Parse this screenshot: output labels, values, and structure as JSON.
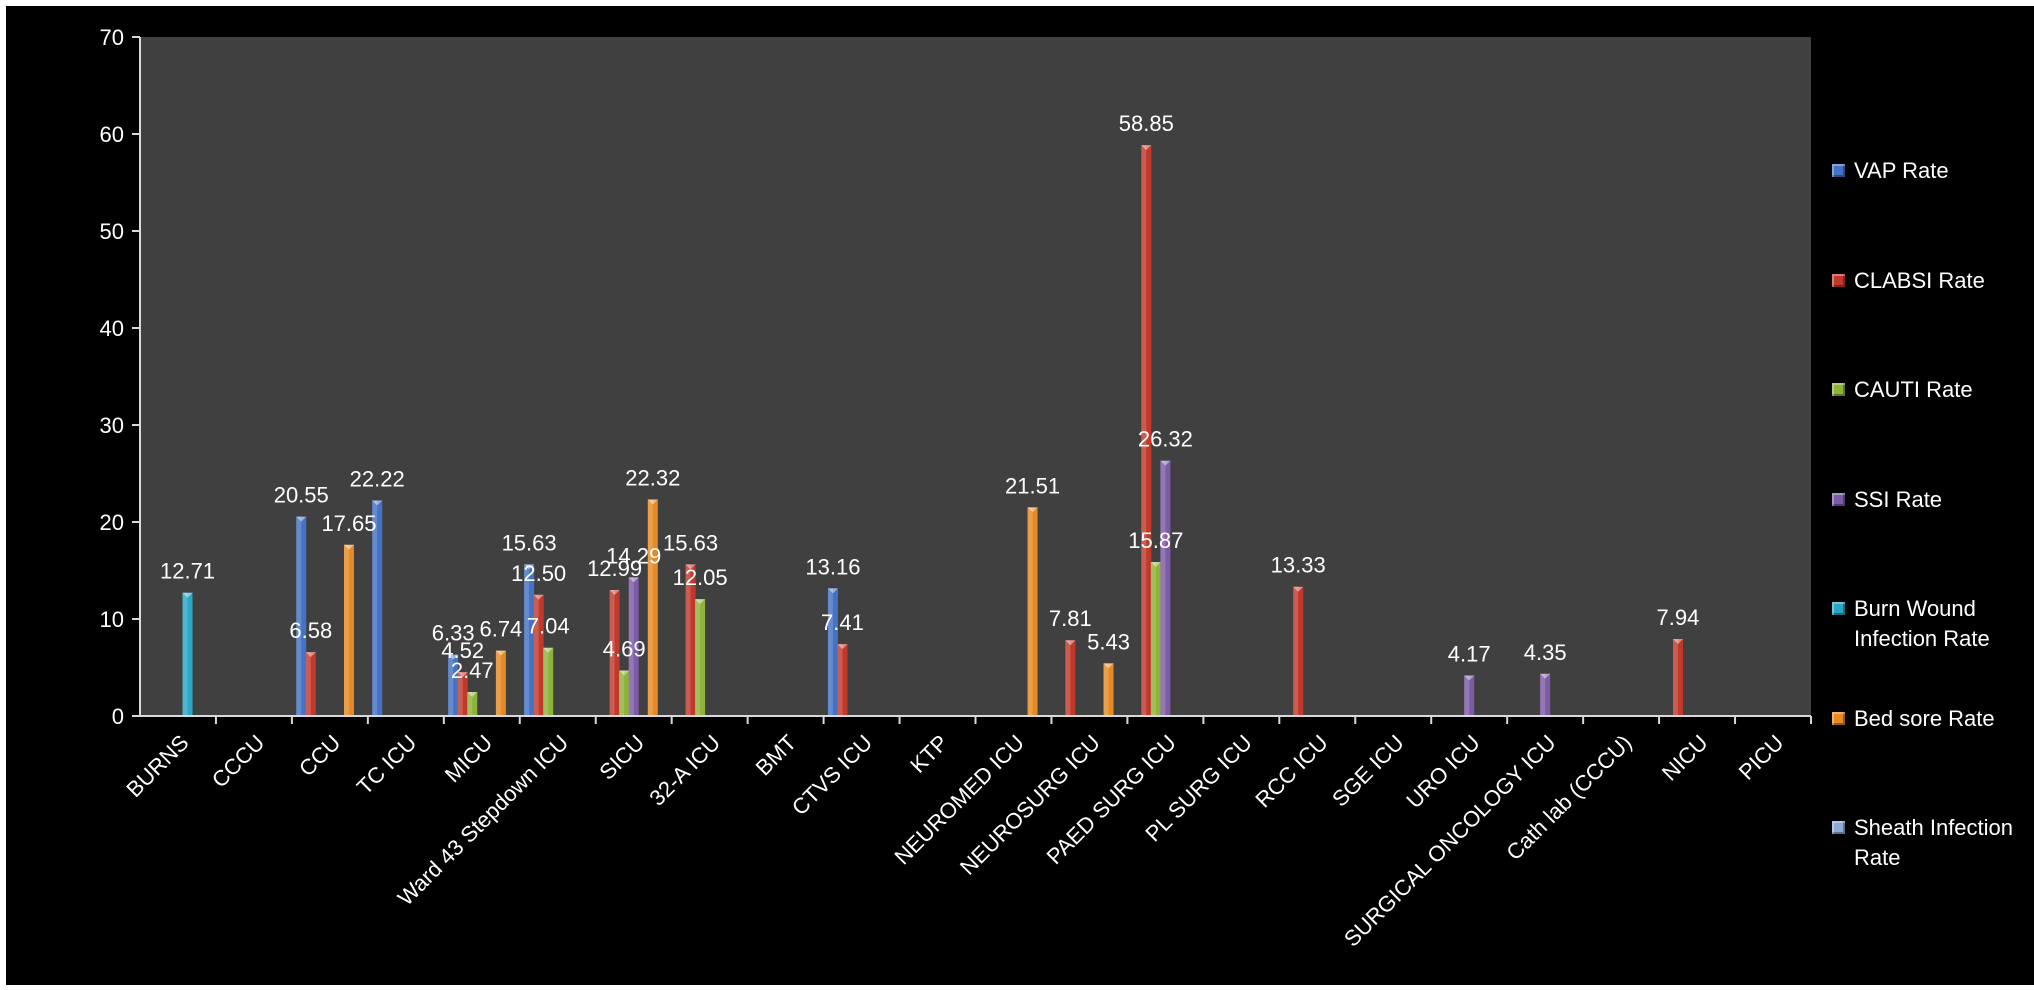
{
  "chart_data": {
    "type": "bar",
    "title": "",
    "xlabel": "",
    "ylabel": "",
    "ylim": [
      0,
      70
    ],
    "yticks": [
      0,
      10,
      20,
      30,
      40,
      50,
      60,
      70
    ],
    "grid": false,
    "legend_position": "right",
    "colors": {
      "figure_background": "#000000",
      "plot_background": "#404040",
      "axis": "#d9d9d9",
      "text": "#ffffff"
    },
    "categories": [
      "BURNS",
      "CCCU",
      "CCU",
      "TC ICU",
      "MICU",
      "Ward 43 Stepdown ICU",
      "SICU",
      "32-A ICU",
      "BMT",
      "CTVS ICU",
      "KTP",
      "NEUROMED ICU",
      "NEUROSURG ICU",
      "PAED SURG ICU",
      "PL SURG ICU",
      "RCC ICU",
      "SGE ICU",
      "URO ICU",
      "SURGICAL ONCOLOGY ICU",
      "Cath lab (CCCU)",
      "NICU",
      "PICU"
    ],
    "series": [
      {
        "name": "VAP Rate",
        "color": "#4472c4",
        "values": [
          null,
          null,
          20.55,
          22.22,
          6.33,
          15.63,
          null,
          null,
          null,
          13.16,
          null,
          null,
          null,
          null,
          null,
          null,
          null,
          null,
          null,
          null,
          null,
          null
        ],
        "labels": [
          null,
          null,
          "20.55",
          "22.22",
          "6.33",
          "15.63",
          null,
          null,
          null,
          "13.16",
          null,
          null,
          null,
          null,
          null,
          null,
          null,
          null,
          null,
          null,
          null,
          null
        ]
      },
      {
        "name": "CLABSI Rate",
        "color": "#c0392b",
        "values": [
          null,
          null,
          6.58,
          null,
          4.52,
          12.5,
          12.99,
          15.63,
          null,
          7.41,
          null,
          null,
          7.81,
          58.85,
          null,
          13.33,
          null,
          null,
          null,
          null,
          7.94,
          null
        ],
        "labels": [
          null,
          null,
          "6.58",
          null,
          "4.52",
          "12.50",
          "12.99",
          "15.63",
          null,
          "7.41",
          null,
          null,
          "7.81",
          "58.85",
          null,
          "13.33",
          null,
          null,
          null,
          null,
          "7.94",
          null
        ]
      },
      {
        "name": "CAUTI Rate",
        "color": "#8db33a",
        "values": [
          null,
          null,
          null,
          null,
          2.47,
          7.04,
          4.69,
          12.05,
          null,
          null,
          null,
          null,
          null,
          15.87,
          null,
          null,
          null,
          null,
          null,
          null,
          null,
          null
        ],
        "labels": [
          null,
          null,
          null,
          null,
          "2.47",
          "7.04",
          "4.69",
          "12.05",
          null,
          null,
          null,
          null,
          null,
          "15.87",
          null,
          null,
          null,
          null,
          null,
          null,
          null,
          null
        ]
      },
      {
        "name": "SSI Rate",
        "color": "#7d5ba6",
        "values": [
          null,
          null,
          null,
          null,
          null,
          null,
          14.29,
          null,
          null,
          null,
          null,
          null,
          null,
          26.32,
          null,
          null,
          null,
          4.17,
          4.35,
          null,
          null,
          null
        ],
        "labels": [
          null,
          null,
          null,
          null,
          null,
          null,
          "14.29",
          null,
          null,
          null,
          null,
          null,
          null,
          "26.32",
          null,
          null,
          null,
          "4.17",
          "4.35",
          null,
          null,
          null
        ]
      },
      {
        "name": "Burn Wound Infection Rate",
        "color": "#2aa7c2",
        "values": [
          12.71,
          null,
          null,
          null,
          null,
          null,
          null,
          null,
          null,
          null,
          null,
          null,
          null,
          null,
          null,
          null,
          null,
          null,
          null,
          null,
          null,
          null
        ],
        "labels": [
          "12.71",
          null,
          null,
          null,
          null,
          null,
          null,
          null,
          null,
          null,
          null,
          null,
          null,
          null,
          null,
          null,
          null,
          null,
          null,
          null,
          null,
          null
        ]
      },
      {
        "name": "Bed sore Rate",
        "color": "#e58a24",
        "values": [
          null,
          null,
          17.65,
          null,
          6.74,
          null,
          22.32,
          null,
          null,
          null,
          null,
          21.51,
          5.43,
          null,
          null,
          null,
          null,
          null,
          null,
          null,
          null,
          null
        ],
        "labels": [
          null,
          null,
          "17.65",
          null,
          "6.74",
          null,
          "22.32",
          null,
          null,
          null,
          null,
          "21.51",
          "5.43",
          null,
          null,
          null,
          null,
          null,
          null,
          null,
          null,
          null
        ]
      },
      {
        "name": "Sheath Infection Rate",
        "color": "#8fa9d6",
        "values": [
          null,
          null,
          null,
          null,
          null,
          null,
          null,
          null,
          null,
          null,
          null,
          null,
          null,
          null,
          null,
          null,
          null,
          null,
          null,
          null,
          null,
          null
        ],
        "labels": [
          null,
          null,
          null,
          null,
          null,
          null,
          null,
          null,
          null,
          null,
          null,
          null,
          null,
          null,
          null,
          null,
          null,
          null,
          null,
          null,
          null,
          null
        ]
      }
    ]
  }
}
